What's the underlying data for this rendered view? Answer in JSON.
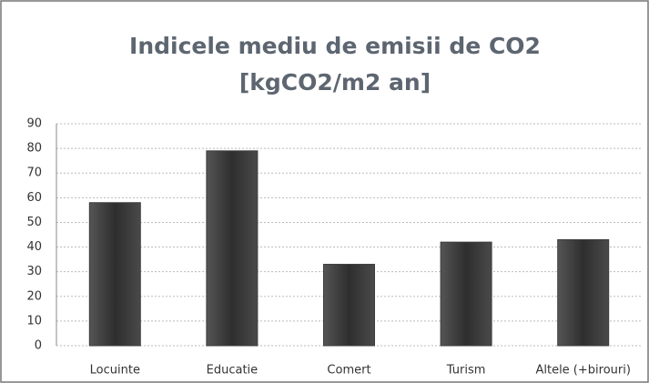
{
  "chart_data": {
    "type": "bar",
    "title": [
      "Indicele mediu de emisii de CO2",
      "[kgCO2/m2 an]"
    ],
    "categories": [
      "Locuinte",
      "Educatie",
      "Comert",
      "Turism",
      "Altele (+birouri)"
    ],
    "values": [
      58,
      79,
      33,
      42,
      43
    ],
    "color": "#3d3d3d",
    "ylim": [
      0,
      90
    ],
    "yticks": [
      0,
      10,
      20,
      30,
      40,
      50,
      60,
      70,
      80,
      90
    ],
    "grid": true
  }
}
